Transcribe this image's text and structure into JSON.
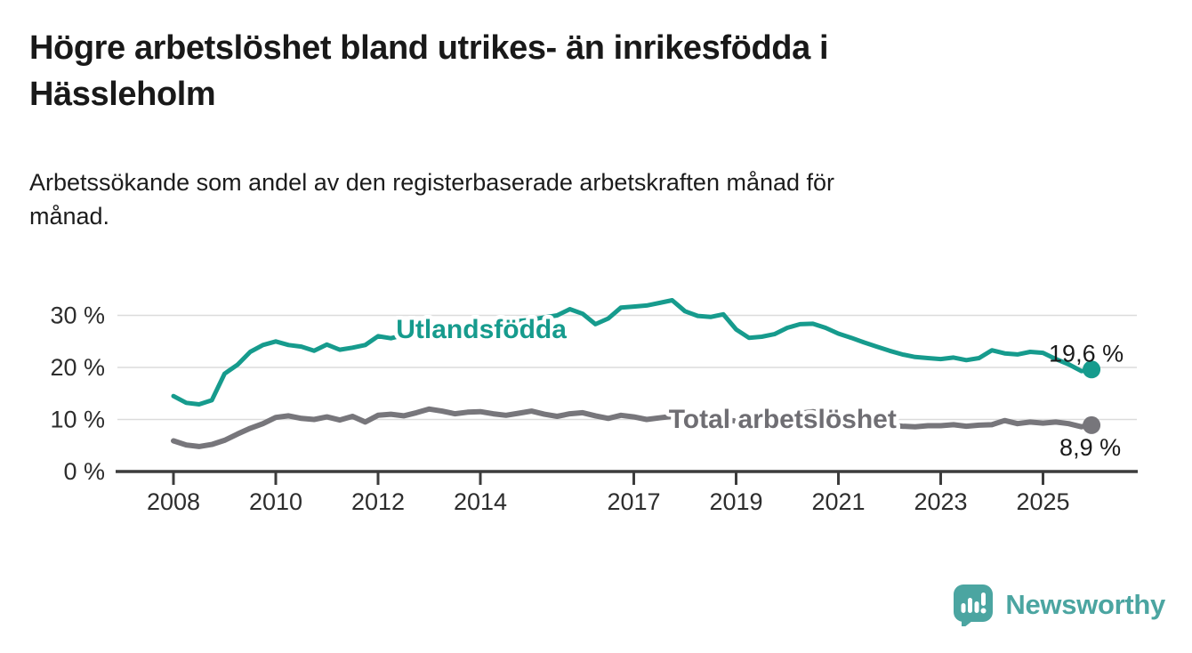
{
  "header": {
    "title": "Högre arbetslöshet bland utrikes- än inrikesfödda i\nHässleholm",
    "subtitle": "Arbetssökande som andel av den registerbaserade arbetskraften månad för\nmånad."
  },
  "footer": {
    "brand": "Newsworthy",
    "brand_color": "#4BA5A1",
    "logo_icon": "speech-bubble-with-bar-chart-and-exclamation"
  },
  "chart_data": {
    "type": "line",
    "title": "Högre arbetslöshet bland utrikes- än inrikesfödda i Hässleholm",
    "subtitle": "Arbetssökande som andel av den registerbaserade arbetskraften månad för månad.",
    "xlabel": "",
    "ylabel": "",
    "grid": "horizontal",
    "x_range": [
      2007.85,
      2026.3
    ],
    "ylim": [
      0,
      34
    ],
    "x_ticks": [
      2008,
      2010,
      2012,
      2014,
      2017,
      2019,
      2021,
      2023,
      2025
    ],
    "y_ticks": [
      {
        "value": 0,
        "label": "0 %"
      },
      {
        "value": 10,
        "label": "10 %"
      },
      {
        "value": 20,
        "label": "20 %"
      },
      {
        "value": 30,
        "label": "30 %"
      }
    ],
    "legend_position": "inline-labels-on-lines",
    "colors": {
      "utlandsfodda": "#169B8D",
      "total": "#77767B",
      "grid": "#DCDCDC",
      "axis": "#3C3C3C",
      "value_label_text": "#1A1A1A"
    },
    "series": [
      {
        "name": "Utlandsfödda",
        "color": "#169B8D",
        "label_color": "#169B8D",
        "width": 5,
        "label_anchor": {
          "x": 2014.02,
          "y": 27.5
        },
        "end_label": "19,6 %",
        "end_value": 19.6,
        "points": [
          [
            2008.0,
            14.5
          ],
          [
            2008.25,
            13.2
          ],
          [
            2008.5,
            12.9
          ],
          [
            2008.75,
            13.7
          ],
          [
            2009.0,
            18.8
          ],
          [
            2009.25,
            20.5
          ],
          [
            2009.5,
            23.0
          ],
          [
            2009.75,
            24.3
          ],
          [
            2010.0,
            25.0
          ],
          [
            2010.25,
            24.3
          ],
          [
            2010.5,
            24.0
          ],
          [
            2010.75,
            23.2
          ],
          [
            2011.0,
            24.4
          ],
          [
            2011.25,
            23.4
          ],
          [
            2011.5,
            23.8
          ],
          [
            2011.75,
            24.3
          ],
          [
            2012.0,
            26.0
          ],
          [
            2012.25,
            25.6
          ],
          [
            2012.5,
            26.2
          ],
          [
            2012.75,
            26.6
          ],
          [
            2013.0,
            27.0
          ],
          [
            2013.25,
            27.3
          ],
          [
            2013.5,
            27.6
          ],
          [
            2013.75,
            27.9
          ],
          [
            2014.0,
            28.2
          ],
          [
            2014.25,
            28.4
          ],
          [
            2014.5,
            28.6
          ],
          [
            2014.75,
            28.9
          ],
          [
            2015.0,
            29.2
          ],
          [
            2015.25,
            29.6
          ],
          [
            2015.5,
            30.0
          ],
          [
            2015.75,
            31.2
          ],
          [
            2016.0,
            30.3
          ],
          [
            2016.25,
            28.3
          ],
          [
            2016.5,
            29.4
          ],
          [
            2016.75,
            31.5
          ],
          [
            2017.0,
            31.7
          ],
          [
            2017.25,
            31.9
          ],
          [
            2017.5,
            32.4
          ],
          [
            2017.75,
            32.9
          ],
          [
            2018.0,
            30.8
          ],
          [
            2018.25,
            29.9
          ],
          [
            2018.5,
            29.7
          ],
          [
            2018.75,
            30.2
          ],
          [
            2019.0,
            27.3
          ],
          [
            2019.25,
            25.7
          ],
          [
            2019.5,
            25.9
          ],
          [
            2019.75,
            26.4
          ],
          [
            2020.0,
            27.6
          ],
          [
            2020.25,
            28.3
          ],
          [
            2020.5,
            28.4
          ],
          [
            2020.75,
            27.6
          ],
          [
            2021.0,
            26.5
          ],
          [
            2021.25,
            25.7
          ],
          [
            2021.5,
            24.8
          ],
          [
            2021.75,
            24.0
          ],
          [
            2022.0,
            23.2
          ],
          [
            2022.25,
            22.5
          ],
          [
            2022.5,
            22.0
          ],
          [
            2022.75,
            21.8
          ],
          [
            2023.0,
            21.6
          ],
          [
            2023.25,
            21.9
          ],
          [
            2023.5,
            21.4
          ],
          [
            2023.75,
            21.8
          ],
          [
            2024.0,
            23.3
          ],
          [
            2024.25,
            22.7
          ],
          [
            2024.5,
            22.5
          ],
          [
            2024.75,
            23.0
          ],
          [
            2025.0,
            22.8
          ],
          [
            2025.25,
            21.6
          ],
          [
            2025.5,
            20.6
          ],
          [
            2025.75,
            19.3
          ],
          [
            2025.95,
            19.6
          ]
        ]
      },
      {
        "name": "Total arbetslöshet",
        "color": "#77767B",
        "label_color": "#6F6E73",
        "width": 6,
        "label_anchor": {
          "x": 2019.91,
          "y": 10.26
        },
        "end_label": "8,9 %",
        "end_value": 8.9,
        "points": [
          [
            2008.0,
            5.9
          ],
          [
            2008.25,
            5.1
          ],
          [
            2008.5,
            4.8
          ],
          [
            2008.75,
            5.2
          ],
          [
            2009.0,
            6.0
          ],
          [
            2009.25,
            7.2
          ],
          [
            2009.5,
            8.3
          ],
          [
            2009.75,
            9.2
          ],
          [
            2010.0,
            10.4
          ],
          [
            2010.25,
            10.7
          ],
          [
            2010.5,
            10.2
          ],
          [
            2010.75,
            10.0
          ],
          [
            2011.0,
            10.5
          ],
          [
            2011.25,
            9.9
          ],
          [
            2011.5,
            10.6
          ],
          [
            2011.75,
            9.5
          ],
          [
            2012.0,
            10.8
          ],
          [
            2012.25,
            11.0
          ],
          [
            2012.5,
            10.7
          ],
          [
            2012.75,
            11.3
          ],
          [
            2013.0,
            12.0
          ],
          [
            2013.25,
            11.6
          ],
          [
            2013.5,
            11.1
          ],
          [
            2013.75,
            11.4
          ],
          [
            2014.0,
            11.5
          ],
          [
            2014.25,
            11.1
          ],
          [
            2014.5,
            10.8
          ],
          [
            2014.75,
            11.2
          ],
          [
            2015.0,
            11.6
          ],
          [
            2015.25,
            11.0
          ],
          [
            2015.5,
            10.6
          ],
          [
            2015.75,
            11.1
          ],
          [
            2016.0,
            11.3
          ],
          [
            2016.25,
            10.7
          ],
          [
            2016.5,
            10.2
          ],
          [
            2016.75,
            10.8
          ],
          [
            2017.0,
            10.5
          ],
          [
            2017.25,
            10.0
          ],
          [
            2017.5,
            10.3
          ],
          [
            2017.75,
            10.6
          ],
          [
            2018.0,
            10.2
          ],
          [
            2018.25,
            9.9
          ],
          [
            2018.5,
            9.8
          ],
          [
            2018.75,
            10.0
          ],
          [
            2019.0,
            9.7
          ],
          [
            2019.25,
            9.4
          ],
          [
            2019.5,
            9.5
          ],
          [
            2019.75,
            9.7
          ],
          [
            2020.0,
            10.0
          ],
          [
            2020.25,
            11.2
          ],
          [
            2020.5,
            11.5
          ],
          [
            2020.75,
            11.0
          ],
          [
            2021.0,
            10.6
          ],
          [
            2021.25,
            10.0
          ],
          [
            2021.5,
            9.5
          ],
          [
            2021.75,
            9.1
          ],
          [
            2022.0,
            8.9
          ],
          [
            2022.25,
            8.7
          ],
          [
            2022.5,
            8.6
          ],
          [
            2022.75,
            8.8
          ],
          [
            2023.0,
            8.8
          ],
          [
            2023.25,
            9.0
          ],
          [
            2023.5,
            8.7
          ],
          [
            2023.75,
            8.9
          ],
          [
            2024.0,
            9.0
          ],
          [
            2024.25,
            9.8
          ],
          [
            2024.5,
            9.2
          ],
          [
            2024.75,
            9.5
          ],
          [
            2025.0,
            9.3
          ],
          [
            2025.25,
            9.5
          ],
          [
            2025.5,
            9.2
          ],
          [
            2025.75,
            8.6
          ],
          [
            2025.95,
            8.9
          ]
        ]
      }
    ]
  }
}
